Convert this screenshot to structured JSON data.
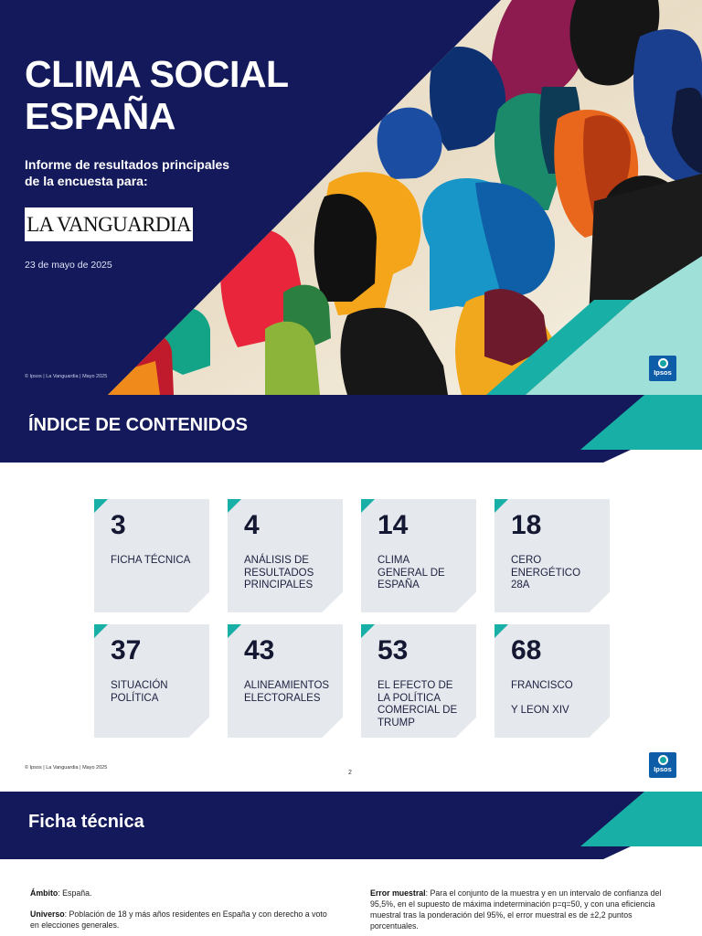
{
  "cover": {
    "title_line1": "CLIMA SOCIAL",
    "title_line2": "ESPAÑA",
    "subtitle_line1": "Informe de resultados principales",
    "subtitle_line2": "de la encuesta para:",
    "logo_text": "LA VANGUARDIA",
    "date": "23 de mayo de 2025",
    "copyright": "© Ipsos | La Vanguardia | Mayo 2025",
    "brand": "Ipsos"
  },
  "index_page": {
    "banner_title": "ÍNDICE DE CONTENIDOS",
    "items": [
      {
        "number": "3",
        "label": "FICHA TÉCNICA"
      },
      {
        "number": "4",
        "label": "ANÁLISIS DE\nRESULTADOS\nPRINCIPALES"
      },
      {
        "number": "14",
        "label": "CLIMA\nGENERAL DE\nESPAÑA"
      },
      {
        "number": "18",
        "label": "CERO\nENERGÉTICO\n28A"
      },
      {
        "number": "37",
        "label": "SITUACIÓN\nPOLÍTICA"
      },
      {
        "number": "43",
        "label": "ALINEAMIENTOS\nELECTORALES"
      },
      {
        "number": "53",
        "label": "EL EFECTO DE\nLA POLÍTICA\nCOMERCIAL DE\nTRUMP"
      },
      {
        "number": "68",
        "label": "FRANCISCO\n\nY LEON XIV"
      }
    ],
    "copyright": "© Ipsos | La Vanguardia | Mayo 2025",
    "page_number": "2",
    "brand": "Ipsos"
  },
  "ficha_page": {
    "banner_title": "Ficha técnica",
    "ambito_label": "Ámbito",
    "ambito_text": ": España.",
    "universo_label": "Universo",
    "universo_text": ": Población de 18 y más años residentes en España y con derecho a voto en elecciones generales.",
    "error_label": "Error muestral",
    "error_text": ": Para el conjunto de la muestra y en un intervalo de confianza del 95,5%, en el supuesto de máxima indeterminación p=q=50, y con una eficiencia muestral tras la ponderación del 95%, el error muestral es de ±2,2 puntos porcentuales."
  },
  "colors": {
    "navy": "#13195a",
    "teal": "#18b0a6",
    "light_teal": "#9fe0d8",
    "ipsos_blue": "#0d5da8",
    "card_gray": "#e5e8ec"
  }
}
